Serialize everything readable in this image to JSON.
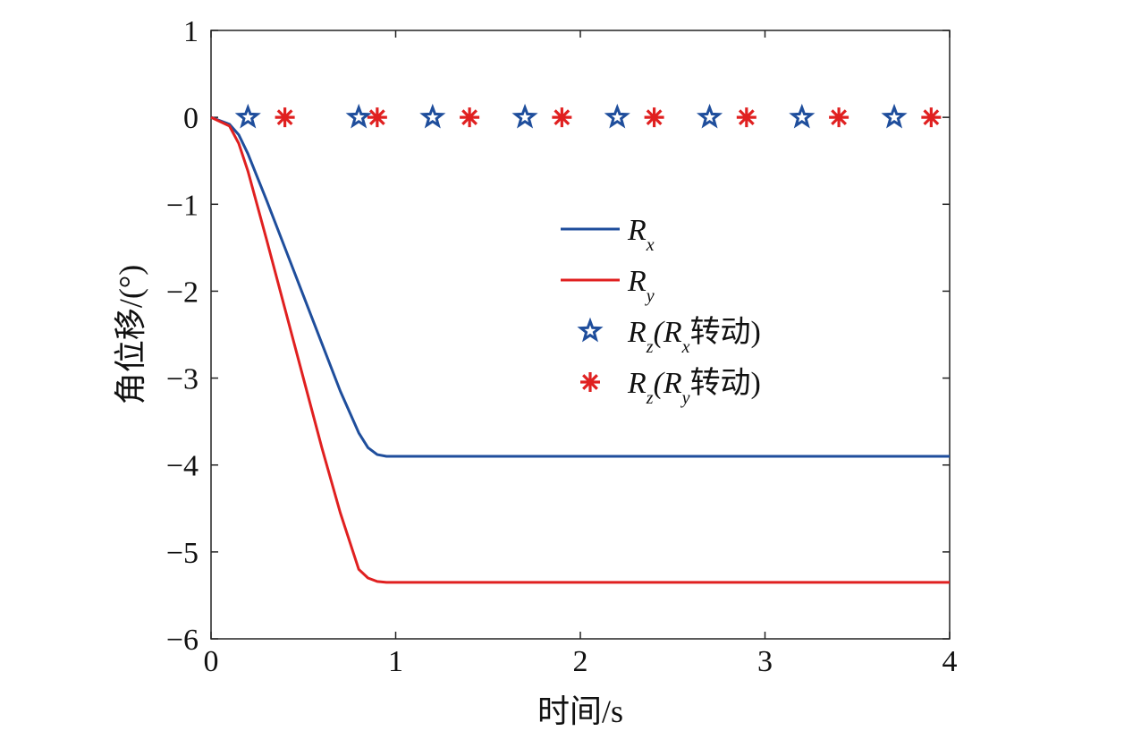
{
  "chart_data": {
    "type": "line",
    "xlabel": "时间/s",
    "ylabel": "角位移/(°)",
    "xlim": [
      0,
      4
    ],
    "ylim": [
      -6,
      1
    ],
    "x_ticks": [
      "0",
      "1",
      "2",
      "3",
      "4"
    ],
    "y_ticks": [
      "1",
      "0",
      "−1",
      "−2",
      "−3",
      "−4",
      "−5",
      "−6"
    ],
    "grid": false,
    "legend_position": "center-right",
    "series": [
      {
        "name": "R_x",
        "legend": {
          "main": "R",
          "sub": "x",
          "suffix": ""
        },
        "kind": "line",
        "color": "#1f4e9c",
        "x": [
          0,
          0.1,
          0.15,
          0.2,
          0.3,
          0.4,
          0.5,
          0.6,
          0.7,
          0.8,
          0.85,
          0.9,
          0.95,
          1.0,
          1.5,
          2.0,
          2.5,
          3.0,
          3.5,
          4.0
        ],
        "y": [
          0,
          -0.08,
          -0.2,
          -0.42,
          -0.95,
          -1.5,
          -2.05,
          -2.6,
          -3.15,
          -3.63,
          -3.8,
          -3.88,
          -3.9,
          -3.9,
          -3.9,
          -3.9,
          -3.9,
          -3.9,
          -3.9,
          -3.9
        ]
      },
      {
        "name": "R_y",
        "legend": {
          "main": "R",
          "sub": "y",
          "suffix": ""
        },
        "kind": "line",
        "color": "#e02020",
        "x": [
          0,
          0.1,
          0.15,
          0.2,
          0.3,
          0.4,
          0.5,
          0.6,
          0.7,
          0.8,
          0.85,
          0.9,
          0.95,
          1.0,
          1.5,
          2.0,
          2.5,
          3.0,
          3.5,
          4.0
        ],
        "y": [
          0,
          -0.1,
          -0.3,
          -0.62,
          -1.4,
          -2.2,
          -3.0,
          -3.8,
          -4.55,
          -5.2,
          -5.3,
          -5.34,
          -5.35,
          -5.35,
          -5.35,
          -5.35,
          -5.35,
          -5.35,
          -5.35,
          -5.35
        ]
      },
      {
        "name": "R_z(R_x转动)",
        "legend": {
          "main": "R",
          "sub": "z",
          "suffix_open": "(R",
          "suffix_sub": "x",
          "suffix_close": "转动)"
        },
        "kind": "marker",
        "marker": "star",
        "color": "#1f4e9c",
        "x": [
          0.2,
          0.8,
          1.2,
          1.7,
          2.2,
          2.7,
          3.2,
          3.7
        ],
        "y": [
          0,
          0,
          0,
          0,
          0,
          0,
          0,
          0
        ]
      },
      {
        "name": "R_z(R_y转动)",
        "legend": {
          "main": "R",
          "sub": "z",
          "suffix_open": "(R",
          "suffix_sub": "y",
          "suffix_close": "转动)"
        },
        "kind": "marker",
        "marker": "asterisk",
        "color": "#e02020",
        "x": [
          0.4,
          0.9,
          1.4,
          1.9,
          2.4,
          2.9,
          3.4,
          3.9
        ],
        "y": [
          0,
          0,
          0,
          0,
          0,
          0,
          0,
          0
        ]
      }
    ]
  }
}
